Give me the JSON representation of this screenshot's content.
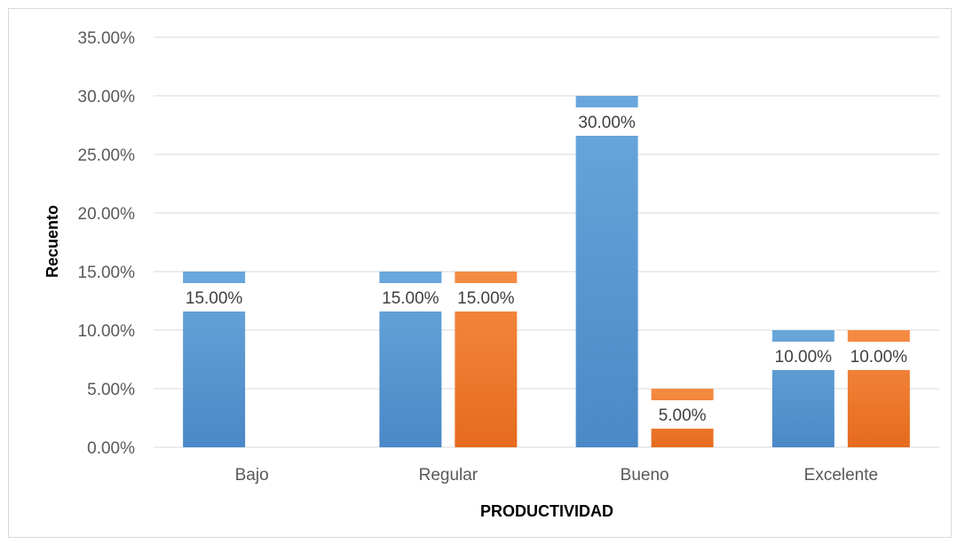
{
  "chart_data": {
    "type": "bar",
    "categories": [
      "Bajo",
      "Regular",
      "Bueno",
      "Excelente"
    ],
    "series": [
      {
        "values": [
          15.0,
          15.0,
          30.0,
          10.0
        ],
        "color": "#5b9bd5"
      },
      {
        "values": [
          null,
          15.0,
          5.0,
          10.0
        ],
        "color": "#ed7d31"
      }
    ],
    "data_labels": [
      [
        "15.00%",
        "15.00%",
        "30.00%",
        "10.00%"
      ],
      [
        null,
        "15.00%",
        "5.00%",
        "10.00%"
      ]
    ],
    "yticks": [
      "0.00%",
      "5.00%",
      "10.00%",
      "15.00%",
      "20.00%",
      "25.00%",
      "30.00%",
      "35.00%"
    ],
    "ylim": [
      0,
      35
    ],
    "xlabel": "PRODUCTIVIDAD",
    "ylabel": "Recuento",
    "grid": true,
    "legend": "none"
  }
}
